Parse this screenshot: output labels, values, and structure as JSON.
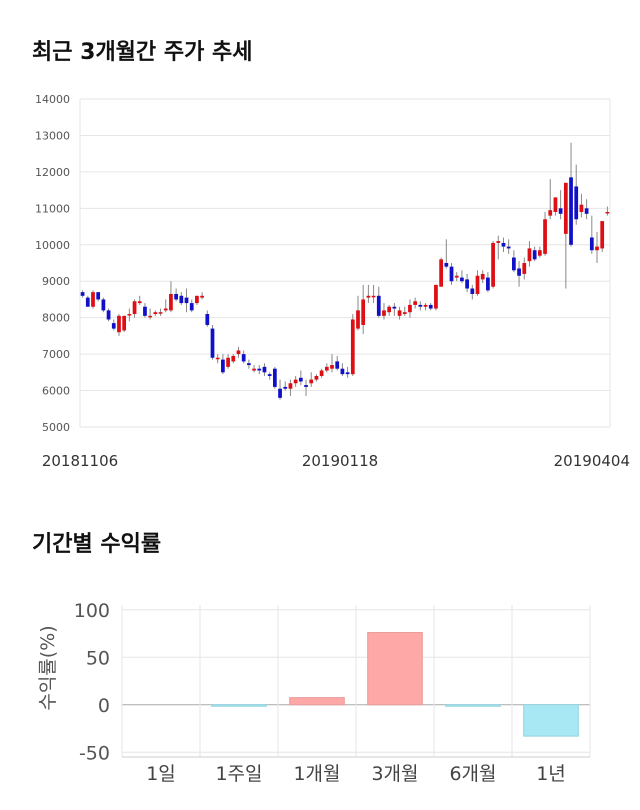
{
  "section1": {
    "title": "최근 3개월간 주가 추세"
  },
  "section2": {
    "title": "기간별 수익률"
  },
  "colors": {
    "up": "#dd0f14",
    "down": "#1010c8",
    "bar_pos": "#ffa8a8",
    "bar_neg": "#a8e8f4",
    "grid": "#e6e6e6"
  },
  "chart_data": [
    {
      "type": "candlestick",
      "ylim": [
        5000,
        14000
      ],
      "y_ticks": [
        "14000",
        "13000",
        "12000",
        "11000",
        "10000",
        "9000",
        "8000",
        "7000",
        "6000",
        "5000"
      ],
      "x_labels": [
        "20181106",
        "20190118",
        "20190404"
      ],
      "grid": true,
      "candles": [
        [
          8700,
          8750,
          8600,
          8550
        ],
        [
          8550,
          8600,
          8300,
          8300
        ],
        [
          8300,
          8750,
          8700,
          8250
        ],
        [
          8700,
          8700,
          8500,
          8450
        ],
        [
          8500,
          8550,
          8200,
          8150
        ],
        [
          8200,
          8250,
          7950,
          7900
        ],
        [
          7850,
          7950,
          7700,
          7650
        ],
        [
          7600,
          8100,
          8050,
          7500
        ],
        [
          7650,
          8050,
          8050,
          7600
        ],
        [
          8100,
          8250,
          8100,
          7900
        ],
        [
          8100,
          8500,
          8450,
          8000
        ],
        [
          8400,
          8600,
          8450,
          8350
        ],
        [
          8300,
          8400,
          8050,
          8000
        ],
        [
          8050,
          8250,
          8050,
          7950
        ],
        [
          8100,
          8200,
          8150,
          8050
        ],
        [
          8150,
          8250,
          8150,
          8050
        ],
        [
          8200,
          8500,
          8250,
          8150
        ],
        [
          8200,
          9000,
          8650,
          8150
        ],
        [
          8650,
          8800,
          8500,
          8450
        ],
        [
          8600,
          8700,
          8400,
          8350
        ],
        [
          8550,
          8800,
          8400,
          8150
        ],
        [
          8400,
          8500,
          8200,
          8150
        ],
        [
          8400,
          8600,
          8600,
          8350
        ],
        [
          8550,
          8700,
          8600,
          8500
        ],
        [
          8100,
          8200,
          7800,
          7750
        ],
        [
          7700,
          7800,
          6900,
          6850
        ],
        [
          6900,
          7000,
          6900,
          6750
        ],
        [
          6850,
          7000,
          6500,
          6450
        ],
        [
          6650,
          7000,
          6900,
          6600
        ],
        [
          6800,
          7000,
          6950,
          6750
        ],
        [
          7000,
          7200,
          7100,
          6900
        ],
        [
          7000,
          7100,
          6800,
          6750
        ],
        [
          6750,
          6850,
          6700,
          6600
        ],
        [
          6550,
          6700,
          6600,
          6500
        ],
        [
          6600,
          6700,
          6550,
          6450
        ],
        [
          6650,
          6750,
          6500,
          6400
        ],
        [
          6450,
          6500,
          6400,
          6300
        ],
        [
          6600,
          6650,
          6100,
          6050
        ],
        [
          6050,
          6300,
          5800,
          5750
        ],
        [
          6100,
          6250,
          6050,
          6000
        ],
        [
          6050,
          6300,
          6200,
          5850
        ],
        [
          6200,
          6400,
          6300,
          6100
        ],
        [
          6350,
          6550,
          6250,
          6150
        ],
        [
          6150,
          6300,
          6100,
          5850
        ],
        [
          6200,
          6500,
          6300,
          6100
        ],
        [
          6300,
          6450,
          6400,
          6250
        ],
        [
          6400,
          6600,
          6550,
          6350
        ],
        [
          6550,
          6750,
          6650,
          6500
        ],
        [
          6600,
          7000,
          6700,
          6500
        ],
        [
          6800,
          6950,
          6600,
          6550
        ],
        [
          6600,
          6750,
          6450,
          6400
        ],
        [
          6500,
          6650,
          6450,
          6350
        ],
        [
          6450,
          8100,
          7950,
          6400
        ],
        [
          7700,
          8600,
          8200,
          7650
        ],
        [
          7800,
          8900,
          8500,
          7550
        ],
        [
          8550,
          8900,
          8600,
          8400
        ],
        [
          8600,
          8900,
          8600,
          8400
        ],
        [
          8600,
          8850,
          8050,
          8000
        ],
        [
          8050,
          8400,
          8200,
          7950
        ],
        [
          8150,
          8350,
          8300,
          8050
        ],
        [
          8300,
          8400,
          8250,
          8050
        ],
        [
          8050,
          8300,
          8200,
          7950
        ],
        [
          8100,
          8300,
          8150,
          8050
        ],
        [
          8150,
          8500,
          8350,
          8000
        ],
        [
          8350,
          8550,
          8450,
          8250
        ],
        [
          8350,
          8450,
          8300,
          8200
        ],
        [
          8300,
          8400,
          8350,
          8200
        ],
        [
          8350,
          8400,
          8250,
          8200
        ],
        [
          8250,
          8900,
          8900,
          8200
        ],
        [
          8850,
          9650,
          9600,
          8850
        ],
        [
          9500,
          10150,
          9400,
          9350
        ],
        [
          9400,
          9500,
          9000,
          8900
        ],
        [
          9100,
          9250,
          9150,
          9000
        ],
        [
          9100,
          9300,
          9000,
          8950
        ],
        [
          9050,
          9200,
          8800,
          8700
        ],
        [
          8800,
          8900,
          8650,
          8500
        ],
        [
          8650,
          9300,
          9150,
          8600
        ],
        [
          9050,
          9300,
          9200,
          8950
        ],
        [
          9100,
          9250,
          8750,
          8700
        ],
        [
          8850,
          10100,
          10050,
          8800
        ],
        [
          10050,
          10250,
          10100,
          9600
        ],
        [
          10050,
          10200,
          9950,
          9800
        ],
        [
          9950,
          10150,
          9900,
          9750
        ],
        [
          9650,
          9850,
          9300,
          9250
        ],
        [
          9350,
          9550,
          9150,
          8850
        ],
        [
          9200,
          9650,
          9500,
          9050
        ],
        [
          9550,
          10100,
          9900,
          9400
        ],
        [
          9850,
          9950,
          9600,
          9550
        ],
        [
          9700,
          9950,
          9850,
          9650
        ],
        [
          9750,
          10900,
          10700,
          9700
        ],
        [
          10800,
          11800,
          10950,
          10700
        ],
        [
          10900,
          11250,
          11300,
          10800
        ],
        [
          11000,
          11500,
          10850,
          10700
        ],
        [
          10300,
          11700,
          11700,
          8800
        ],
        [
          11850,
          12800,
          10000,
          9950
        ],
        [
          11600,
          12200,
          10700,
          10550
        ],
        [
          10900,
          11400,
          11100,
          10750
        ],
        [
          11000,
          11250,
          10850,
          10700
        ],
        [
          10200,
          10800,
          9850,
          9750
        ],
        [
          9850,
          10350,
          9950,
          9500
        ],
        [
          9900,
          10650,
          10650,
          9800
        ],
        [
          10900,
          11050,
          10900,
          10800
        ]
      ]
    },
    {
      "type": "bar",
      "ylim": [
        -55,
        105
      ],
      "y_ticks": [
        "100",
        "50",
        "0",
        "-50"
      ],
      "ylabel": "수익률(%)",
      "categories": [
        "1일",
        "1주일",
        "1개월",
        "3개월",
        "6개월",
        "1년"
      ],
      "values": [
        0,
        -1,
        7.5,
        76,
        -0.5,
        -33
      ],
      "grid": true
    }
  ]
}
